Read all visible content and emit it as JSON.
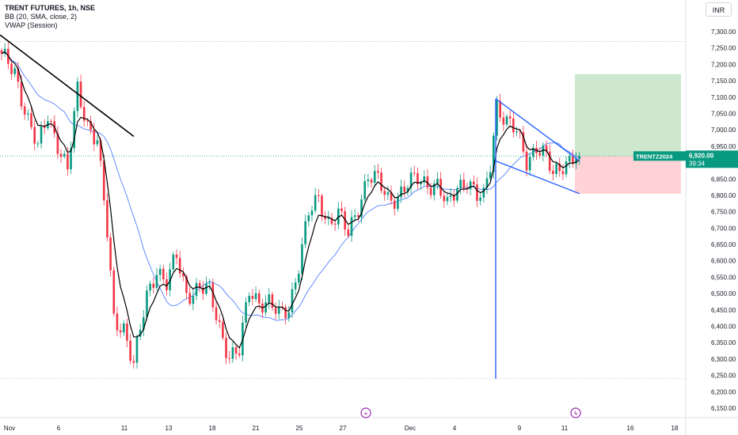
{
  "header": {
    "symbol_line": "TRENT FUTURES, 1h, NSE",
    "indicator_bb": "BB (20, SMA, close, 2)",
    "indicator_vwap": "VWAP (Session)",
    "currency": "INR"
  },
  "colors": {
    "up": "#089981",
    "down": "#f23645",
    "vwap": "#000000",
    "bb_basis": "#2962ff",
    "pattern": "#2962ff",
    "target_zone": "#c8e6c9",
    "stop_zone": "#ffcdd2",
    "price_tag": "#089981"
  },
  "last_price": {
    "label": "TRENTZ2024",
    "price": "6,920.00",
    "countdown": "39:34"
  },
  "chart_data": {
    "type": "candlestick",
    "title": "TRENT FUTURES, 1h, NSE",
    "y_axis": {
      "ylim": [
        6130,
        7350
      ],
      "ticks": [
        "6,150.00",
        "6,200.00",
        "6,250.00",
        "6,300.00",
        "6,350.00",
        "6,400.00",
        "6,450.00",
        "6,500.00",
        "6,550.00",
        "6,600.00",
        "6,650.00",
        "6,700.00",
        "6,750.00",
        "6,800.00",
        "6,850.00",
        "6,900.00",
        "6,950.00",
        "7,000.00",
        "7,050.00",
        "7,100.00",
        "7,150.00",
        "7,200.00",
        "7,250.00",
        "7,300.00"
      ]
    },
    "x_axis": {
      "labels": [
        "Nov",
        "6",
        "11",
        "13",
        "18",
        "21",
        "25",
        "27",
        "Dec",
        "4",
        "9",
        "11",
        "16",
        "18"
      ]
    },
    "dotted_levels": [
      7270,
      6920,
      6240
    ],
    "trend_line": {
      "from_price": 7290,
      "to_price": 6980
    },
    "pattern": {
      "upper_line": [
        7095,
        6905
      ],
      "lower_line": [
        6905,
        6805
      ],
      "vertical_line_from": 7095,
      "vertical_line_to": 6240
    },
    "position": {
      "target": 7170,
      "entry": 6920,
      "stop": 6805
    },
    "anchors": [
      {
        "i": 0,
        "p": 7220
      },
      {
        "i": 4,
        "p": 7180
      },
      {
        "i": 8,
        "p": 7030
      },
      {
        "i": 11,
        "p": 6940
      },
      {
        "i": 14,
        "p": 7050
      },
      {
        "i": 17,
        "p": 6960
      },
      {
        "i": 20,
        "p": 6870
      },
      {
        "i": 23,
        "p": 7120
      },
      {
        "i": 26,
        "p": 7020
      },
      {
        "i": 29,
        "p": 6970
      },
      {
        "i": 32,
        "p": 6680
      },
      {
        "i": 34,
        "p": 6420
      },
      {
        "i": 37,
        "p": 6400
      },
      {
        "i": 40,
        "p": 6280
      },
      {
        "i": 44,
        "p": 6490
      },
      {
        "i": 47,
        "p": 6580
      },
      {
        "i": 50,
        "p": 6530
      },
      {
        "i": 53,
        "p": 6610
      },
      {
        "i": 56,
        "p": 6500
      },
      {
        "i": 60,
        "p": 6520
      },
      {
        "i": 63,
        "p": 6500
      },
      {
        "i": 66,
        "p": 6400
      },
      {
        "i": 69,
        "p": 6310
      },
      {
        "i": 72,
        "p": 6320
      },
      {
        "i": 75,
        "p": 6510
      },
      {
        "i": 78,
        "p": 6480
      },
      {
        "i": 81,
        "p": 6470
      },
      {
        "i": 84,
        "p": 6430
      },
      {
        "i": 87,
        "p": 6460
      },
      {
        "i": 90,
        "p": 6590
      },
      {
        "i": 93,
        "p": 6740
      },
      {
        "i": 96,
        "p": 6790
      },
      {
        "i": 99,
        "p": 6720
      },
      {
        "i": 102,
        "p": 6740
      },
      {
        "i": 105,
        "p": 6680
      },
      {
        "i": 108,
        "p": 6770
      },
      {
        "i": 111,
        "p": 6860
      },
      {
        "i": 114,
        "p": 6840
      },
      {
        "i": 117,
        "p": 6790
      },
      {
        "i": 120,
        "p": 6800
      },
      {
        "i": 123,
        "p": 6830
      },
      {
        "i": 126,
        "p": 6850
      },
      {
        "i": 129,
        "p": 6840
      },
      {
        "i": 132,
        "p": 6830
      },
      {
        "i": 135,
        "p": 6760
      },
      {
        "i": 138,
        "p": 6830
      },
      {
        "i": 141,
        "p": 6850
      },
      {
        "i": 144,
        "p": 6790
      },
      {
        "i": 146,
        "p": 6790
      },
      {
        "i": 148,
        "p": 6900
      },
      {
        "i": 150,
        "p": 7080
      },
      {
        "i": 153,
        "p": 7020
      },
      {
        "i": 156,
        "p": 6990
      },
      {
        "i": 159,
        "p": 6910
      },
      {
        "i": 162,
        "p": 6950
      },
      {
        "i": 165,
        "p": 6910
      },
      {
        "i": 167,
        "p": 6860
      },
      {
        "i": 170,
        "p": 6900
      },
      {
        "i": 173,
        "p": 6915
      },
      {
        "i": 175,
        "p": 6920
      }
    ]
  }
}
